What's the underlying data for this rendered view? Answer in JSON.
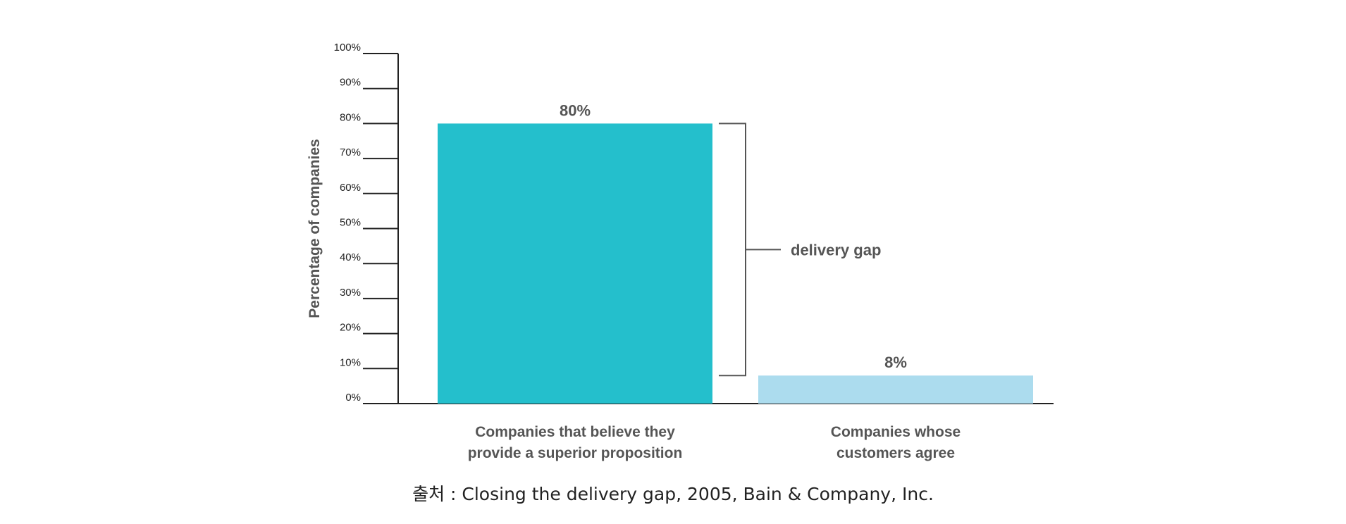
{
  "chart_data": {
    "type": "bar",
    "ylabel": "Percentage of companies",
    "ylim": [
      0,
      100
    ],
    "yticks": [
      0,
      10,
      20,
      30,
      40,
      50,
      60,
      70,
      80,
      90,
      100
    ],
    "ytick_format": "%",
    "grid": false,
    "categories": [
      [
        "Companies that believe they",
        "provide a superior proposition"
      ],
      [
        "Companies whose",
        "customers agree"
      ]
    ],
    "values": [
      80,
      8
    ],
    "value_labels": [
      "80%",
      "8%"
    ],
    "colors": [
      "#24bfcc",
      "#acdcee"
    ],
    "annotation": {
      "label": "delivery gap",
      "from": 8,
      "to": 80
    }
  },
  "source": "출처 : Closing the delivery gap, 2005, Bain & Company, Inc."
}
